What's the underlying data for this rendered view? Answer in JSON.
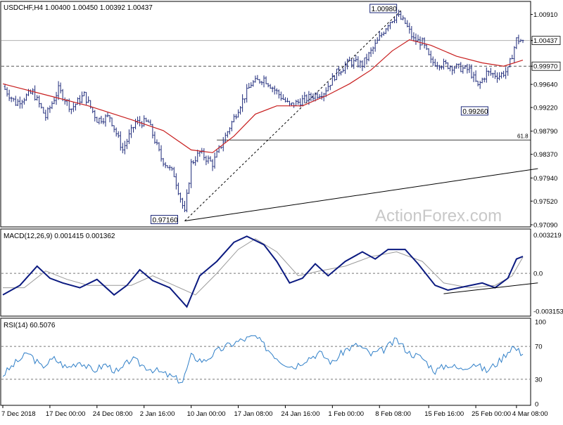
{
  "header": {
    "symbol_line": "USDCHF,H4  1.00400 1.00450 1.00392 1.00437"
  },
  "colors": {
    "price_bars": "#1e2a7a",
    "moving_average": "#c81e1e",
    "macd_line": "#0b1a80",
    "signal_line": "#9a9a9a",
    "rsi_line": "#2f7fc8",
    "grid_dashed": "#555555",
    "watermark": "#c8c8c8"
  },
  "chart_data": [
    {
      "type": "candlestick",
      "panel": "price",
      "title": "USDCHF,H4",
      "ohlc_readout": {
        "open": 1.004,
        "high": 1.0045,
        "low": 1.00392,
        "close": 1.00437
      },
      "ylim": [
        0.9709,
        1.0107
      ],
      "y_ticks": [
        "1.00910",
        "1.00437",
        "0.99970",
        "0.99640",
        "0.99220",
        "0.98790",
        "0.98370",
        "0.97940",
        "0.97520",
        "0.97090"
      ],
      "x_ticks": [
        "7 Dec 2018",
        "17 Dec 00:00",
        "24 Dec 08:00",
        "2 Jan 16:00",
        "10 Jan 00:00",
        "17 Jan 08:00",
        "24 Jan 16:00",
        "1 Feb 00:00",
        "8 Feb 08:00",
        "15 Feb 16:00",
        "25 Feb 00:00",
        "4 Mar 08:00"
      ],
      "close_path": [
        {
          "bar": 0,
          "close": 0.996
        },
        {
          "bar": 6,
          "close": 0.993
        },
        {
          "bar": 14,
          "close": 0.995
        },
        {
          "bar": 20,
          "close": 0.9905
        },
        {
          "bar": 26,
          "close": 0.9955
        },
        {
          "bar": 32,
          "close": 0.992
        },
        {
          "bar": 38,
          "close": 0.9945
        },
        {
          "bar": 44,
          "close": 0.99
        },
        {
          "bar": 50,
          "close": 0.9905
        },
        {
          "bar": 56,
          "close": 0.9845
        },
        {
          "bar": 62,
          "close": 0.9895
        },
        {
          "bar": 68,
          "close": 0.9895
        },
        {
          "bar": 74,
          "close": 0.983
        },
        {
          "bar": 80,
          "close": 0.98
        },
        {
          "bar": 85,
          "close": 0.973
        },
        {
          "bar": 88,
          "close": 0.982
        },
        {
          "bar": 92,
          "close": 0.984
        },
        {
          "bar": 98,
          "close": 0.982
        },
        {
          "bar": 104,
          "close": 0.987
        },
        {
          "bar": 110,
          "close": 0.992
        },
        {
          "bar": 116,
          "close": 0.9965
        },
        {
          "bar": 122,
          "close": 0.9975
        },
        {
          "bar": 128,
          "close": 0.995
        },
        {
          "bar": 134,
          "close": 0.9925
        },
        {
          "bar": 140,
          "close": 0.9935
        },
        {
          "bar": 146,
          "close": 0.9945
        },
        {
          "bar": 150,
          "close": 0.995
        },
        {
          "bar": 156,
          "close": 0.9985
        },
        {
          "bar": 162,
          "close": 1.0005
        },
        {
          "bar": 168,
          "close": 1.0
        },
        {
          "bar": 174,
          "close": 1.0035
        },
        {
          "bar": 180,
          "close": 1.0075
        },
        {
          "bar": 184,
          "close": 1.009
        },
        {
          "bar": 188,
          "close": 1.0075
        },
        {
          "bar": 192,
          "close": 1.0045
        },
        {
          "bar": 196,
          "close": 1.004
        },
        {
          "bar": 200,
          "close": 1.0005
        },
        {
          "bar": 206,
          "close": 1.0
        },
        {
          "bar": 212,
          "close": 0.9995
        },
        {
          "bar": 218,
          "close": 0.999
        },
        {
          "bar": 222,
          "close": 0.996
        },
        {
          "bar": 226,
          "close": 0.9985
        },
        {
          "bar": 232,
          "close": 0.998
        },
        {
          "bar": 236,
          "close": 0.999
        },
        {
          "bar": 240,
          "close": 1.0045
        },
        {
          "bar": 243,
          "close": 1.00437
        }
      ],
      "moving_average": [
        {
          "bar": 0,
          "value": 0.9965
        },
        {
          "bar": 20,
          "value": 0.9945
        },
        {
          "bar": 40,
          "value": 0.9925
        },
        {
          "bar": 60,
          "value": 0.99
        },
        {
          "bar": 75,
          "value": 0.988
        },
        {
          "bar": 88,
          "value": 0.9845
        },
        {
          "bar": 98,
          "value": 0.984
        },
        {
          "bar": 108,
          "value": 0.987
        },
        {
          "bar": 118,
          "value": 0.991
        },
        {
          "bar": 128,
          "value": 0.9925
        },
        {
          "bar": 140,
          "value": 0.9925
        },
        {
          "bar": 152,
          "value": 0.9945
        },
        {
          "bar": 162,
          "value": 0.9965
        },
        {
          "bar": 172,
          "value": 0.999
        },
        {
          "bar": 182,
          "value": 1.0025
        },
        {
          "bar": 190,
          "value": 1.0045
        },
        {
          "bar": 200,
          "value": 1.0035
        },
        {
          "bar": 212,
          "value": 1.0015
        },
        {
          "bar": 224,
          "value": 1.0003
        },
        {
          "bar": 234,
          "value": 0.9997
        },
        {
          "bar": 243,
          "value": 1.0008
        }
      ],
      "annotations": [
        {
          "label": "1.00980",
          "price": 1.0098
        },
        {
          "label": "0.99260",
          "price": 0.9926
        },
        {
          "label": "0.97160",
          "price": 0.9716
        },
        {
          "label": "61.8",
          "price": 0.9863
        }
      ],
      "horizontal_levels": {
        "dashed": 0.9997,
        "solid_last": 1.00437,
        "fibo_61_8": 0.9863
      },
      "trendlines": [
        {
          "style": "solid",
          "from": {
            "bar": 85,
            "price": 0.9716
          },
          "to": {
            "bar": 250,
            "price": 0.9811
          }
        },
        {
          "style": "dashed",
          "from": {
            "bar": 85,
            "price": 0.9716
          },
          "to": {
            "bar": 186,
            "price": 1.0098
          }
        }
      ],
      "price_tags": {
        "last": "1.00437",
        "level": "0.99970"
      },
      "watermark": "ActionForex.com"
    },
    {
      "type": "line",
      "panel": "macd",
      "title": "MACD(12,26,9) 0.001415 0.001362",
      "ylim": [
        -0.0034,
        0.0033
      ],
      "y_ticks": [
        "0.003219",
        "0.0",
        "-0.003153"
      ],
      "series": [
        {
          "role": "macd",
          "values": [
            {
              "bar": 0,
              "value": -0.0018
            },
            {
              "bar": 8,
              "value": -0.001
            },
            {
              "bar": 16,
              "value": 0.0006
            },
            {
              "bar": 22,
              "value": -0.0004
            },
            {
              "bar": 28,
              "value": -0.0008
            },
            {
              "bar": 36,
              "value": -0.0012
            },
            {
              "bar": 44,
              "value": -0.0005
            },
            {
              "bar": 52,
              "value": -0.0018
            },
            {
              "bar": 58,
              "value": -0.001
            },
            {
              "bar": 64,
              "value": 0.0003
            },
            {
              "bar": 70,
              "value": -0.0006
            },
            {
              "bar": 78,
              "value": -0.0012
            },
            {
              "bar": 86,
              "value": -0.0028
            },
            {
              "bar": 92,
              "value": -0.0002
            },
            {
              "bar": 100,
              "value": 0.001
            },
            {
              "bar": 108,
              "value": 0.0026
            },
            {
              "bar": 114,
              "value": 0.0031
            },
            {
              "bar": 122,
              "value": 0.0024
            },
            {
              "bar": 128,
              "value": 0.001
            },
            {
              "bar": 134,
              "value": -0.0008
            },
            {
              "bar": 140,
              "value": -0.0004
            },
            {
              "bar": 146,
              "value": 0.0008
            },
            {
              "bar": 152,
              "value": -0.0002
            },
            {
              "bar": 160,
              "value": 0.001
            },
            {
              "bar": 168,
              "value": 0.0018
            },
            {
              "bar": 174,
              "value": 0.0012
            },
            {
              "bar": 180,
              "value": 0.002
            },
            {
              "bar": 188,
              "value": 0.002
            },
            {
              "bar": 194,
              "value": 0.0008
            },
            {
              "bar": 202,
              "value": -0.001
            },
            {
              "bar": 208,
              "value": -0.0014
            },
            {
              "bar": 216,
              "value": -0.0011
            },
            {
              "bar": 224,
              "value": -0.0008
            },
            {
              "bar": 230,
              "value": -0.0012
            },
            {
              "bar": 236,
              "value": -0.0004
            },
            {
              "bar": 240,
              "value": 0.0012
            },
            {
              "bar": 243,
              "value": 0.001415
            }
          ]
        },
        {
          "role": "signal",
          "values": [
            {
              "bar": 0,
              "value": -0.0012
            },
            {
              "bar": 10,
              "value": -0.0012
            },
            {
              "bar": 20,
              "value": 0.0002
            },
            {
              "bar": 30,
              "value": -0.0005
            },
            {
              "bar": 40,
              "value": -0.001
            },
            {
              "bar": 50,
              "value": -0.001
            },
            {
              "bar": 60,
              "value": -0.001
            },
            {
              "bar": 70,
              "value": -0.0002
            },
            {
              "bar": 80,
              "value": -0.001
            },
            {
              "bar": 90,
              "value": -0.0018
            },
            {
              "bar": 100,
              "value": 0.0
            },
            {
              "bar": 110,
              "value": 0.002
            },
            {
              "bar": 118,
              "value": 0.0029
            },
            {
              "bar": 128,
              "value": 0.0018
            },
            {
              "bar": 138,
              "value": -0.0002
            },
            {
              "bar": 148,
              "value": 0.0002
            },
            {
              "bar": 160,
              "value": 0.0006
            },
            {
              "bar": 172,
              "value": 0.0014
            },
            {
              "bar": 184,
              "value": 0.0018
            },
            {
              "bar": 196,
              "value": 0.001
            },
            {
              "bar": 206,
              "value": -0.0008
            },
            {
              "bar": 218,
              "value": -0.0012
            },
            {
              "bar": 230,
              "value": -0.001
            },
            {
              "bar": 238,
              "value": -0.0002
            },
            {
              "bar": 243,
              "value": 0.001362
            }
          ]
        }
      ],
      "zero_line": 0.0,
      "trendline": {
        "from": {
          "bar": 206,
          "value": -0.0017
        },
        "to": {
          "bar": 250,
          "value": -0.0008
        }
      }
    },
    {
      "type": "line",
      "panel": "rsi",
      "title": "RSI(14) 60.5076",
      "ylim": [
        0,
        100
      ],
      "y_ticks": [
        "100",
        "70",
        "30",
        "0"
      ],
      "levels": [
        70,
        30
      ],
      "values": [
        {
          "bar": 0,
          "value": 35
        },
        {
          "bar": 6,
          "value": 50
        },
        {
          "bar": 12,
          "value": 62
        },
        {
          "bar": 18,
          "value": 45
        },
        {
          "bar": 24,
          "value": 55
        },
        {
          "bar": 30,
          "value": 44
        },
        {
          "bar": 36,
          "value": 52
        },
        {
          "bar": 42,
          "value": 40
        },
        {
          "bar": 48,
          "value": 48
        },
        {
          "bar": 54,
          "value": 38
        },
        {
          "bar": 60,
          "value": 55
        },
        {
          "bar": 66,
          "value": 46
        },
        {
          "bar": 72,
          "value": 40
        },
        {
          "bar": 78,
          "value": 34
        },
        {
          "bar": 84,
          "value": 27
        },
        {
          "bar": 88,
          "value": 58
        },
        {
          "bar": 94,
          "value": 52
        },
        {
          "bar": 100,
          "value": 64
        },
        {
          "bar": 106,
          "value": 72
        },
        {
          "bar": 112,
          "value": 78
        },
        {
          "bar": 118,
          "value": 82
        },
        {
          "bar": 124,
          "value": 66
        },
        {
          "bar": 130,
          "value": 52
        },
        {
          "bar": 136,
          "value": 45
        },
        {
          "bar": 142,
          "value": 55
        },
        {
          "bar": 148,
          "value": 62
        },
        {
          "bar": 154,
          "value": 50
        },
        {
          "bar": 160,
          "value": 66
        },
        {
          "bar": 166,
          "value": 72
        },
        {
          "bar": 172,
          "value": 60
        },
        {
          "bar": 178,
          "value": 66
        },
        {
          "bar": 184,
          "value": 78
        },
        {
          "bar": 190,
          "value": 62
        },
        {
          "bar": 196,
          "value": 56
        },
        {
          "bar": 202,
          "value": 40
        },
        {
          "bar": 208,
          "value": 48
        },
        {
          "bar": 214,
          "value": 42
        },
        {
          "bar": 220,
          "value": 50
        },
        {
          "bar": 226,
          "value": 40
        },
        {
          "bar": 232,
          "value": 52
        },
        {
          "bar": 238,
          "value": 70
        },
        {
          "bar": 243,
          "value": 60.5
        }
      ]
    }
  ]
}
